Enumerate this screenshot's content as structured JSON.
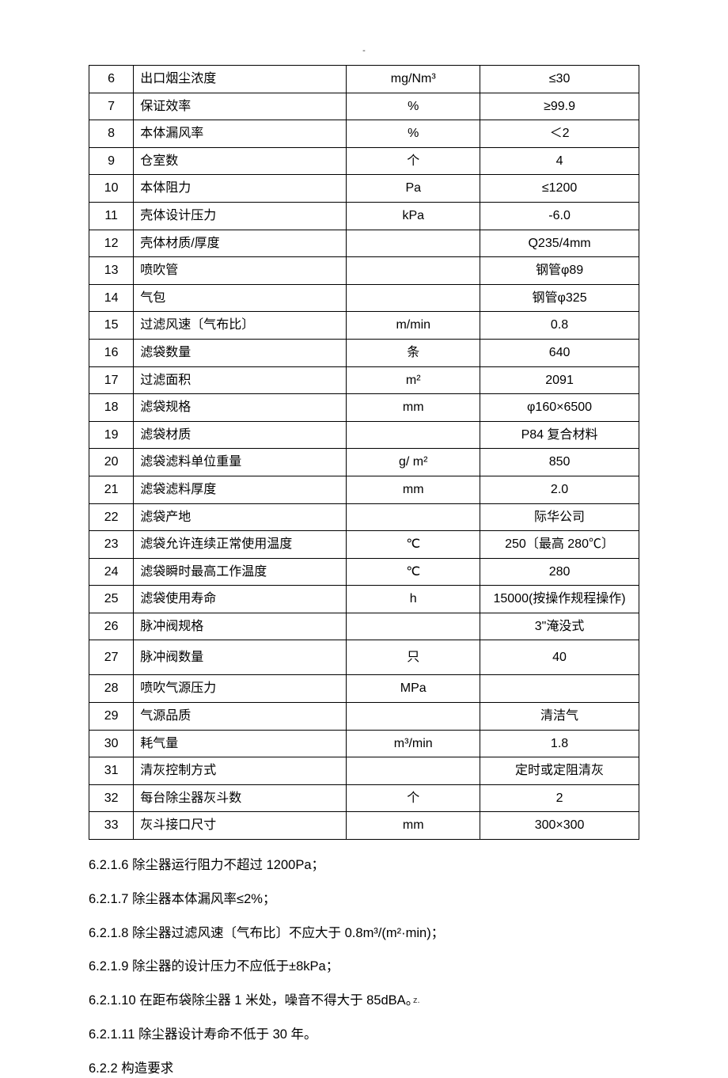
{
  "header_mark": "-",
  "footer_dot": ".",
  "footer_z": "z.",
  "table": {
    "rows": [
      {
        "idx": "6",
        "name": "出口烟尘浓度",
        "unit": "mg/Nm³",
        "val": "≤30",
        "tall": false
      },
      {
        "idx": "7",
        "name": "保证效率",
        "unit": "%",
        "val": "≥99.9",
        "tall": false
      },
      {
        "idx": "8",
        "name": "本体漏风率",
        "unit": "%",
        "val": "＜2",
        "tall": false
      },
      {
        "idx": "9",
        "name": "仓室数",
        "unit": "个",
        "val": "4",
        "tall": false
      },
      {
        "idx": "10",
        "name": "本体阻力",
        "unit": "Pa",
        "val": "≤1200",
        "tall": false
      },
      {
        "idx": "11",
        "name": "壳体设计压力",
        "unit": "kPa",
        "val": "-6.0",
        "tall": false
      },
      {
        "idx": "12",
        "name": "壳体材质/厚度",
        "unit": "",
        "val": "Q235/4mm",
        "tall": false
      },
      {
        "idx": "13",
        "name": "喷吹管",
        "unit": "",
        "val": "钢管φ89",
        "tall": false
      },
      {
        "idx": "14",
        "name": "气包",
        "unit": "",
        "val": "钢管φ325",
        "tall": false
      },
      {
        "idx": "15",
        "name": "过滤风速〔气布比〕",
        "unit": "m/min",
        "val": "0.8",
        "tall": false
      },
      {
        "idx": "16",
        "name": "滤袋数量",
        "unit": "条",
        "val": "640",
        "tall": false
      },
      {
        "idx": "17",
        "name": "过滤面积",
        "unit": "m²",
        "val": "2091",
        "tall": false
      },
      {
        "idx": "18",
        "name": "滤袋规格",
        "unit": "mm",
        "val": "φ160×6500",
        "tall": false
      },
      {
        "idx": "19",
        "name": "滤袋材质",
        "unit": "",
        "val": "P84 复合材料",
        "tall": false
      },
      {
        "idx": "20",
        "name": "滤袋滤料单位重量",
        "unit": "g/ m²",
        "val": "850",
        "tall": false
      },
      {
        "idx": "21",
        "name": "滤袋滤料厚度",
        "unit": "mm",
        "val": "2.0",
        "tall": false
      },
      {
        "idx": "22",
        "name": "滤袋产地",
        "unit": "",
        "val": "际华公司",
        "tall": false
      },
      {
        "idx": "23",
        "name": "滤袋允许连续正常使用温度",
        "unit": "℃",
        "val": "250〔最高 280℃〕",
        "tall": false
      },
      {
        "idx": "24",
        "name": "滤袋瞬时最高工作温度",
        "unit": "℃",
        "val": "280",
        "tall": false
      },
      {
        "idx": "25",
        "name": "滤袋使用寿命",
        "unit": "h",
        "val": "15000(按操作规程操作)",
        "tall": false
      },
      {
        "idx": "26",
        "name": "脉冲阀规格",
        "unit": "",
        "val": "3\"淹没式",
        "tall": false
      },
      {
        "idx": "27",
        "name": "脉冲阀数量",
        "unit": "只",
        "val": "40",
        "tall": true
      },
      {
        "idx": "28",
        "name": "喷吹气源压力",
        "unit": "MPa",
        "val": "",
        "tall": false
      },
      {
        "idx": "29",
        "name": "气源品质",
        "unit": "",
        "val": "清洁气",
        "tall": false
      },
      {
        "idx": "30",
        "name": "耗气量",
        "unit": "m³/min",
        "val": "1.8",
        "tall": false
      },
      {
        "idx": "31",
        "name": "清灰控制方式",
        "unit": "",
        "val": "定时或定阻清灰",
        "tall": false
      },
      {
        "idx": "32",
        "name": "每台除尘器灰斗数",
        "unit": "个",
        "val": "2",
        "tall": false
      },
      {
        "idx": "33",
        "name": "灰斗接口尺寸",
        "unit": "mm",
        "val": "300×300",
        "tall": false
      }
    ]
  },
  "paragraphs": [
    "6.2.1.6 除尘器运行阻力不超过 1200Pa；",
    "6.2.1.7 除尘器本体漏风率≤2%；",
    "6.2.1.8 除尘器过滤风速〔气布比〕不应大于 0.8m³/(m²·min)；",
    "6.2.1.9 除尘器的设计压力不应低于±8kPa；",
    "6.2.1.10 在距布袋除尘器 1 米处，噪音不得大于 85dBA。",
    "6.2.1.11 除尘器设计寿命不低于 30 年。",
    "6.2.2 构造要求"
  ]
}
